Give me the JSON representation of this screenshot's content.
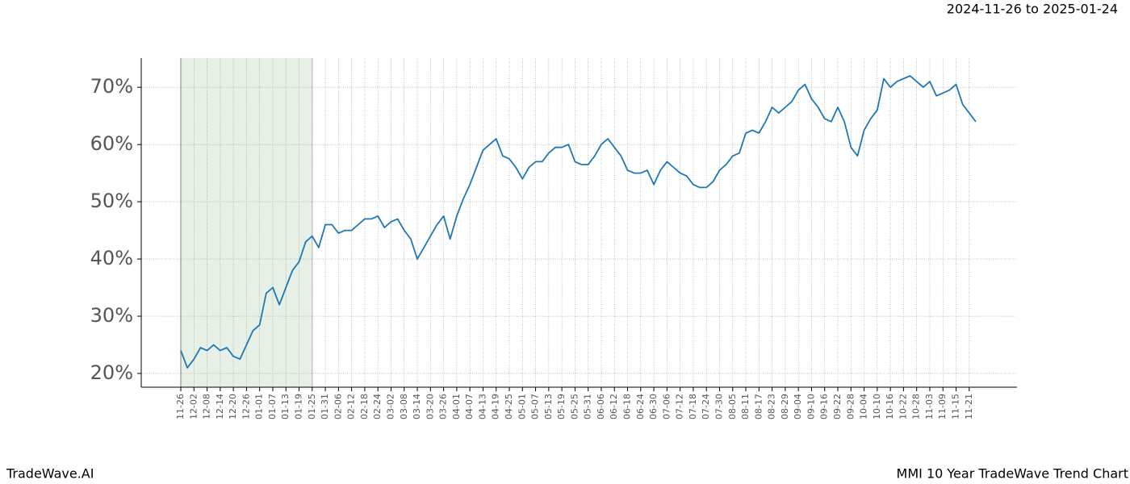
{
  "chart_data": {
    "type": "line",
    "title": "MMI 10 Year TradeWave Trend Chart",
    "subtitle": "2024-11-26 to 2025-01-24",
    "source": "TradeWave.AI",
    "categories": [
      "11-26",
      null,
      "12-02",
      null,
      "12-08",
      null,
      "12-14",
      null,
      "12-20",
      null,
      "12-26",
      null,
      "01-01",
      null,
      "01-07",
      null,
      "01-13",
      null,
      "01-19",
      null,
      "01-25",
      null,
      "01-31",
      null,
      "02-06",
      null,
      "02-12",
      null,
      "02-18",
      null,
      "02-24",
      null,
      "03-02",
      null,
      "03-08",
      null,
      "03-14",
      null,
      "03-20",
      null,
      "03-26",
      null,
      "04-01",
      null,
      "04-07",
      null,
      "04-13",
      null,
      "04-19",
      null,
      "04-25",
      null,
      "05-01",
      null,
      "05-07",
      null,
      "05-13",
      null,
      "05-19",
      null,
      "05-25",
      null,
      "05-31",
      null,
      "06-06",
      null,
      "06-12",
      null,
      "06-18",
      null,
      "06-24",
      null,
      "06-30",
      null,
      "07-06",
      null,
      "07-12",
      null,
      "07-18",
      null,
      "07-24",
      null,
      "07-30",
      null,
      "08-05",
      null,
      "08-11",
      null,
      "08-17",
      null,
      "08-23",
      null,
      "08-29",
      null,
      "09-04",
      null,
      "09-10",
      null,
      "09-16",
      null,
      "09-22",
      null,
      "09-28",
      null,
      "10-04",
      null,
      "10-10",
      null,
      "10-16",
      null,
      "10-22",
      null,
      "10-28",
      null,
      "11-03",
      null,
      "11-09",
      null,
      "11-15",
      null,
      "11-21",
      null
    ],
    "series": [
      {
        "name": "MMI",
        "color": "#1f77b4",
        "values": [
          24,
          21,
          22.5,
          24.5,
          24,
          25,
          24,
          24.5,
          23,
          22.5,
          25,
          27.5,
          28.5,
          34,
          35,
          32,
          35,
          38,
          39.5,
          43,
          44,
          42,
          46,
          46,
          44.5,
          45,
          45,
          46,
          47,
          47,
          47.5,
          45.5,
          46.5,
          47,
          45,
          43.5,
          40,
          42,
          44,
          46,
          47.5,
          43.5,
          47.5,
          50.5,
          53,
          56,
          59,
          60,
          61,
          58,
          57.5,
          56,
          54,
          56,
          57,
          57,
          58.5,
          59.5,
          59.5,
          60,
          57,
          56.5,
          56.5,
          58,
          60,
          61,
          59.5,
          58,
          55.5,
          55,
          55,
          55.5,
          53,
          55.5,
          57,
          56,
          55,
          54.5,
          53,
          52.5,
          52.5,
          53.5,
          55.5,
          56.5,
          58,
          58.5,
          62,
          62.5,
          62,
          64,
          66.5,
          65.5,
          66.5,
          67.5,
          69.5,
          70.5,
          68,
          66.5,
          64.5,
          64,
          66.5,
          64,
          59.5,
          58,
          62.5,
          64.5,
          66,
          71.5,
          70,
          71,
          71.5,
          72,
          71,
          70,
          71,
          68.5,
          69,
          69.5,
          70.5,
          67,
          65.5,
          64
        ]
      }
    ],
    "shaded_span": [
      "11-26",
      "01-25"
    ],
    "shade_color": "#e6f0e6",
    "ylim": [
      17.6,
      75.1
    ],
    "yticks": [
      {
        "value": 20,
        "label": "20%"
      },
      {
        "value": 30,
        "label": "30%"
      },
      {
        "value": 40,
        "label": "40%"
      },
      {
        "value": 50,
        "label": "50%"
      },
      {
        "value": 60,
        "label": "60%"
      },
      {
        "value": 70,
        "label": "70%"
      }
    ],
    "grid": true
  }
}
